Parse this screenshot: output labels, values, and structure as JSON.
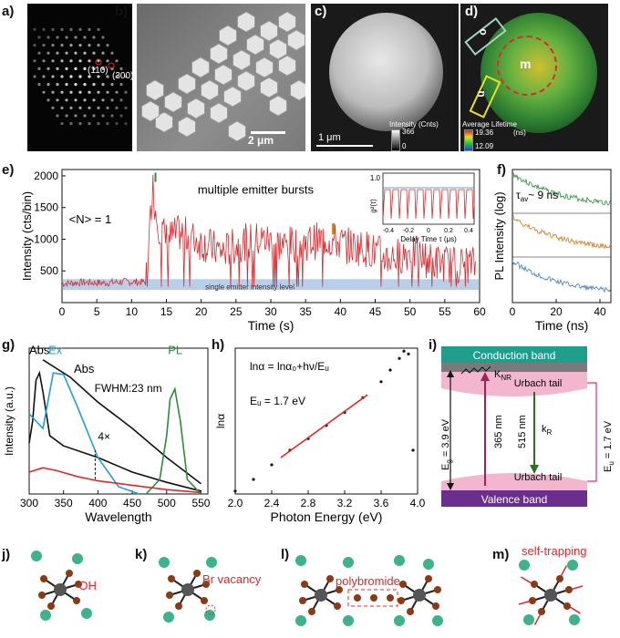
{
  "panels": {
    "a": {
      "label": "a)",
      "spot1": "(110)",
      "spot2": "(300)"
    },
    "b": {
      "label": "b)",
      "scale": "2 μm"
    },
    "c": {
      "label": "c)",
      "scale": "1 μm",
      "cb_title": "Intensity (Cnts)",
      "cb_max": "366",
      "cb_min": "0"
    },
    "d": {
      "label": "d)",
      "cb_title": "Average Lifetime",
      "cb_max": "19.36",
      "cb_unit": "(ns)",
      "cb_min": "12.09",
      "region_o": "o",
      "region_m": "m",
      "region_n": "n"
    },
    "e": {
      "label": "e)",
      "annot_bursts": "multiple emitter bursts",
      "annot_n": "<N> = 1",
      "annot_single": "single emitter intensity level",
      "inset_ylabel": "g²(τ)",
      "inset_xlabel": "Delay Time τ (μs)",
      "inset_y": "1.0",
      "inset_ticks": [
        "-0.4",
        "-0.2",
        "0",
        "0.2",
        "0.4"
      ]
    },
    "f": {
      "label": "f)",
      "tau": "τ",
      "tau_sub": "av",
      "tau_val": "~ 9 ns"
    },
    "g": {
      "label": "g)",
      "abs1": "Abs",
      "ex": "Ex",
      "pl": "PL",
      "abs2": "Abs",
      "fwhm": "FWHM:23 nm",
      "mult": "4×"
    },
    "h": {
      "label": "h)",
      "eq": "lnα = lnα₀+hν/Eᵤ",
      "eu": "Eᵤ = 1.7 eV"
    },
    "i": {
      "label": "i)",
      "cb": "Conduction band",
      "vb": "Valence band",
      "urbach_top": "Urbach tail",
      "urbach_bot": "Urbach tail",
      "knr": "K",
      "knr_sub": "NR",
      "kr": "k",
      "kr_sub": "R",
      "eg": "E",
      "eg_sub": "g",
      "eg_val": " = 3.9 eV",
      "nm365": "365 nm",
      "nm515": "515 nm",
      "eu": "E",
      "eu_sub": "u",
      "eu_val": " = 1.7 eV"
    },
    "j": {
      "label": "j)",
      "text": "-OH"
    },
    "k": {
      "label": "k)",
      "text": "Br vacancy"
    },
    "l": {
      "label": "l)",
      "text": "polybromide"
    },
    "m": {
      "label": "m)",
      "text": "self-trapping"
    }
  },
  "colors": {
    "red": "#e0282c",
    "green": "#2e8b3a",
    "cyan": "#1fa0d8",
    "orange": "#d27a1a",
    "blue": "#3b7dc4",
    "teal": "#1f9e8e",
    "purple": "#6a2e8c",
    "pink": "#f3b6cf",
    "atom_green": "#3cb38a",
    "atom_brown": "#8b3a14",
    "atom_gray": "#555"
  },
  "chart_data": [
    {
      "id": "e",
      "type": "line",
      "xlabel": "Time (s)",
      "ylabel": "Intensity (cts/bin)",
      "xlim": [
        0,
        60
      ],
      "ylim": [
        0,
        2100
      ],
      "xticks": [
        "0",
        "5",
        "10",
        "15",
        "20",
        "25",
        "30",
        "35",
        "40",
        "45",
        "50",
        "55",
        "60"
      ],
      "yticks": [
        "500",
        "1000",
        "1500",
        "2000"
      ],
      "series": [
        {
          "x": [
            0,
            3,
            6,
            9,
            12,
            12.5,
            13,
            13.5,
            14,
            15,
            17,
            20,
            23,
            26,
            29,
            32,
            35,
            38,
            41,
            44,
            47,
            50,
            53,
            56,
            59.5
          ],
          "values": [
            300,
            320,
            310,
            330,
            320,
            900,
            1900,
            1400,
            1200,
            1000,
            1100,
            950,
            800,
            950,
            1000,
            900,
            950,
            1000,
            900,
            850,
            700,
            800,
            650,
            600,
            600
          ]
        }
      ]
    },
    {
      "id": "f",
      "type": "line",
      "xlabel": "Time (ns)",
      "ylabel": "PL Intensity (log)",
      "xlim": [
        0,
        45
      ],
      "xticks": [
        "0",
        "20",
        "40"
      ],
      "series": [
        {
          "name": "green"
        },
        {
          "name": "orange"
        },
        {
          "name": "blue"
        }
      ]
    },
    {
      "id": "g",
      "type": "line",
      "xlabel": "Wavelength",
      "ylabel": "Intensity (a.u.)",
      "xlim": [
        300,
        560
      ],
      "xticks": [
        "300",
        "350",
        "400",
        "450",
        "500",
        "550"
      ],
      "series": [
        {
          "x": [
            300,
            305,
            310,
            315,
            320,
            330,
            350,
            400,
            450,
            500,
            550
          ],
          "values": [
            0.35,
            0.5,
            0.78,
            0.83,
            0.7,
            0.4,
            0.33,
            0.25,
            0.15,
            0.08,
            0.02
          ]
        },
        {
          "x": [
            300,
            310,
            320,
            335,
            350,
            370,
            400,
            430,
            460
          ],
          "values": [
            0.55,
            0.5,
            0.45,
            0.83,
            0.82,
            0.6,
            0.25,
            0.05,
            0.0
          ]
        },
        {
          "x": [
            320,
            360,
            400,
            450,
            500,
            550
          ],
          "values": [
            0.92,
            0.8,
            0.63,
            0.45,
            0.25,
            0.07
          ]
        },
        {
          "x": [
            470,
            490,
            500,
            505,
            512,
            520,
            530,
            550
          ],
          "values": [
            0.0,
            0.1,
            0.4,
            0.65,
            0.72,
            0.5,
            0.1,
            0.0
          ]
        }
      ]
    },
    {
      "id": "h",
      "type": "scatter",
      "xlabel": "Photon Energy (eV)",
      "ylabel": "lnα",
      "xlim": [
        2.0,
        4.0
      ],
      "xticks": [
        "2.0",
        "2.4",
        "2.8",
        "3.2",
        "3.6",
        "4.0"
      ],
      "x": [
        2.0,
        2.2,
        2.4,
        2.6,
        2.8,
        3.0,
        3.2,
        3.4,
        3.6,
        3.7,
        3.8,
        3.85,
        3.9,
        3.95
      ],
      "values": [
        0.02,
        0.1,
        0.2,
        0.3,
        0.38,
        0.47,
        0.56,
        0.66,
        0.77,
        0.85,
        0.93,
        0.98,
        0.96,
        0.3
      ]
    }
  ]
}
